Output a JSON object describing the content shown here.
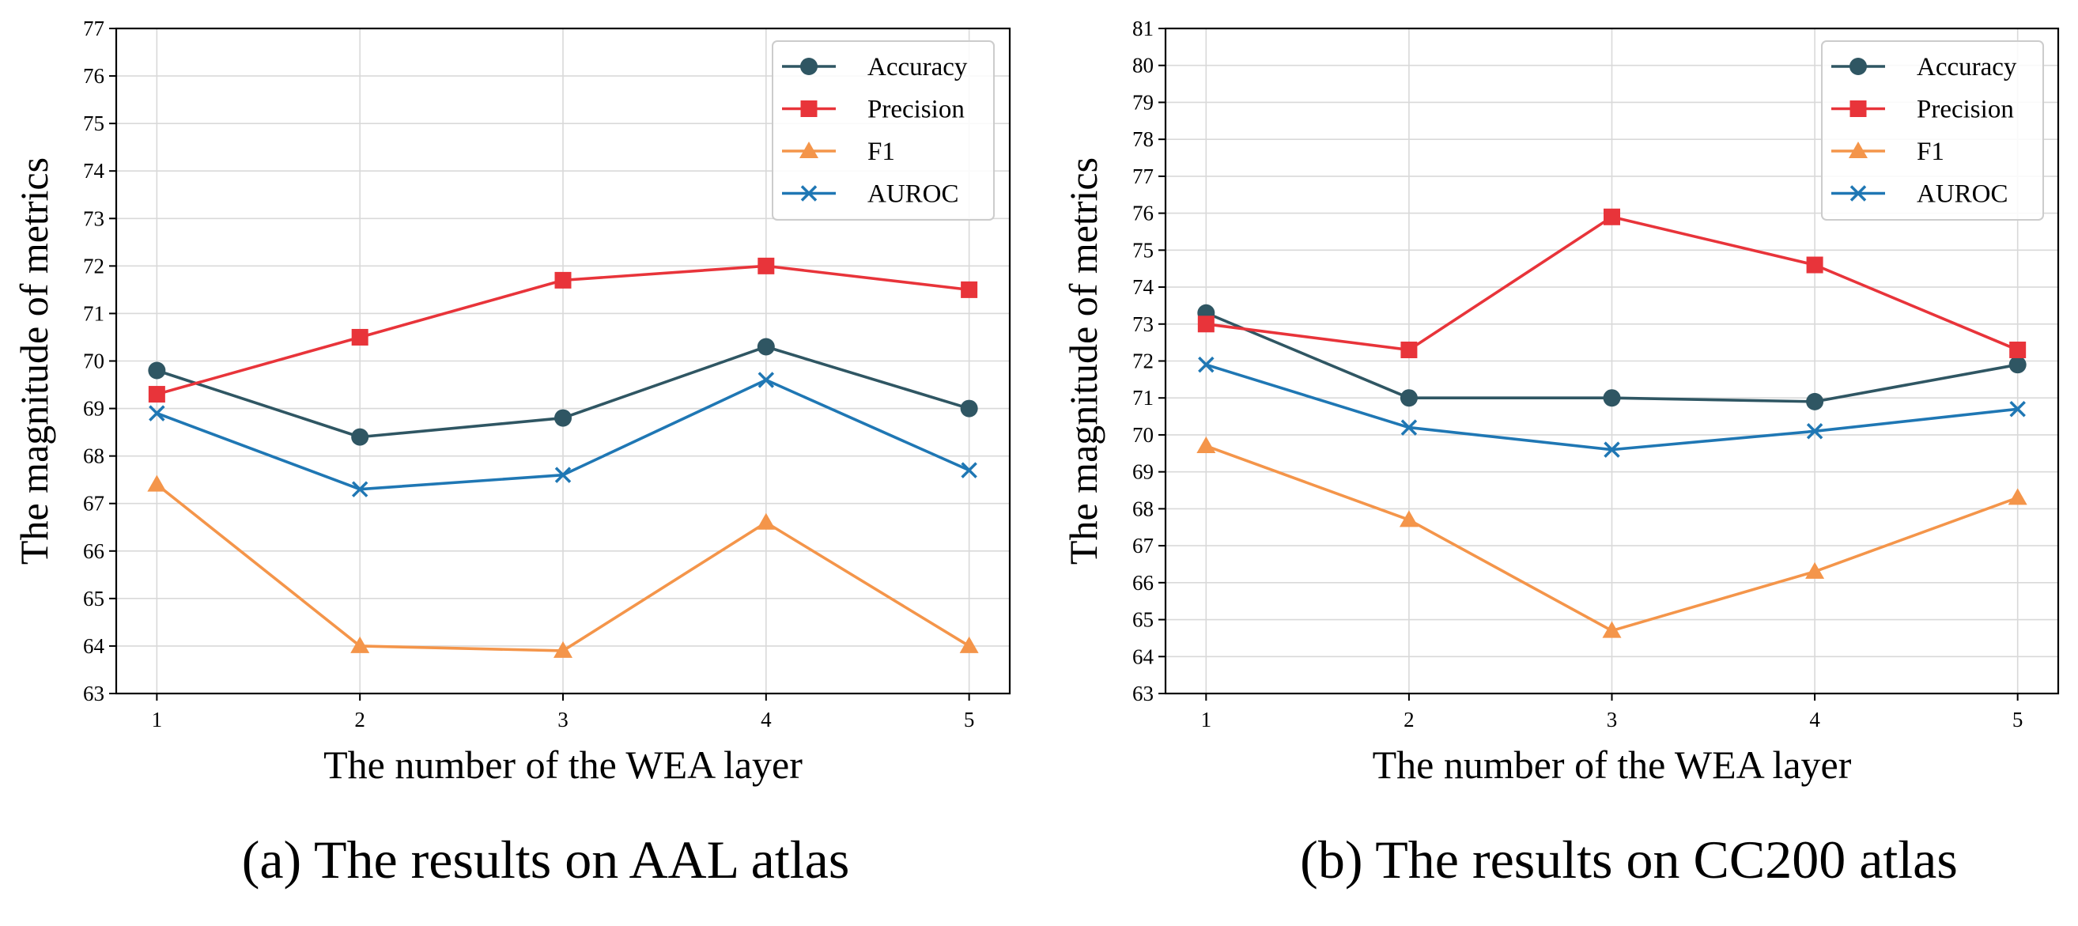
{
  "chart_data": [
    {
      "type": "line",
      "caption": "(a) The results on AAL atlas",
      "xlabel": "The number of the WEA layer",
      "ylabel": "The magnitude of metrics",
      "x": [
        1,
        2,
        3,
        4,
        5
      ],
      "xticks": [
        "1",
        "2",
        "3",
        "4",
        "5"
      ],
      "xlim": [
        0.8,
        5.2
      ],
      "ylim": [
        63,
        77
      ],
      "yticks": [
        "63",
        "64",
        "65",
        "66",
        "67",
        "68",
        "69",
        "70",
        "71",
        "72",
        "73",
        "74",
        "75",
        "76",
        "77"
      ],
      "grid": true,
      "legend_position": "top-right",
      "series": [
        {
          "name": "Accuracy",
          "marker": "circle",
          "color": "#2f5663",
          "values": [
            69.8,
            68.4,
            68.8,
            70.3,
            69.0
          ]
        },
        {
          "name": "Precision",
          "marker": "square",
          "color": "#e8343a",
          "values": [
            69.3,
            70.5,
            71.7,
            72.0,
            71.5
          ]
        },
        {
          "name": "F1",
          "marker": "triangle",
          "color": "#f4954a",
          "values": [
            67.4,
            64.0,
            63.9,
            66.6,
            64.0
          ]
        },
        {
          "name": "AUROC",
          "marker": "x",
          "color": "#1f77b4",
          "values": [
            68.9,
            67.3,
            67.6,
            69.6,
            67.7
          ]
        }
      ]
    },
    {
      "type": "line",
      "caption": "(b) The results on CC200 atlas",
      "xlabel": "The number of the WEA layer",
      "ylabel": "The magnitude of metrics",
      "x": [
        1,
        2,
        3,
        4,
        5
      ],
      "xticks": [
        "1",
        "2",
        "3",
        "4",
        "5"
      ],
      "xlim": [
        0.8,
        5.2
      ],
      "ylim": [
        63,
        81
      ],
      "yticks": [
        "63",
        "64",
        "65",
        "66",
        "67",
        "68",
        "69",
        "70",
        "71",
        "72",
        "73",
        "74",
        "75",
        "76",
        "77",
        "78",
        "79",
        "80",
        "81"
      ],
      "grid": true,
      "legend_position": "top-right",
      "series": [
        {
          "name": "Accuracy",
          "marker": "circle",
          "color": "#2f5663",
          "values": [
            73.3,
            71.0,
            71.0,
            70.9,
            71.9
          ]
        },
        {
          "name": "Precision",
          "marker": "square",
          "color": "#e8343a",
          "values": [
            73.0,
            72.3,
            75.9,
            74.6,
            72.3
          ]
        },
        {
          "name": "F1",
          "marker": "triangle",
          "color": "#f4954a",
          "values": [
            69.7,
            67.7,
            64.7,
            66.3,
            68.3
          ]
        },
        {
          "name": "AUROC",
          "marker": "x",
          "color": "#1f77b4",
          "values": [
            71.9,
            70.2,
            69.6,
            70.1,
            70.7
          ]
        }
      ]
    }
  ]
}
